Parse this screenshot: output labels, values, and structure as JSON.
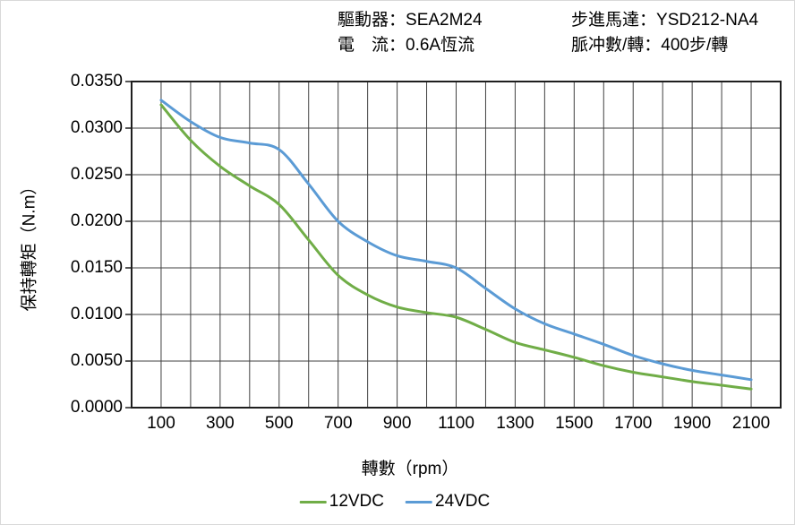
{
  "header": {
    "items": [
      {
        "label": "驅動器：",
        "value": "SEA2M24"
      },
      {
        "label": "步進馬達：",
        "value": "YSD212-NA4"
      },
      {
        "label": "電　流：",
        "value": "0.6A恆流"
      },
      {
        "label": "脈冲數/轉：",
        "value": "400步/轉"
      }
    ]
  },
  "chart_data": {
    "type": "line",
    "title": "",
    "xlabel": "轉數（rpm）",
    "ylabel": "保持轉矩（N.m）",
    "xlim": [
      0,
      2200
    ],
    "ylim": [
      0,
      0.035
    ],
    "grid": true,
    "legend_position": "bottom",
    "grid_color": "#404040",
    "axis_color": "#1f1f1f",
    "x_grid_step": 100,
    "x_tick_labels": [
      100,
      300,
      500,
      700,
      900,
      1100,
      1300,
      1500,
      1700,
      1900,
      2100
    ],
    "y_ticks": [
      {
        "value": 0.0,
        "label": "0.0000"
      },
      {
        "value": 0.005,
        "label": "0.0050"
      },
      {
        "value": 0.01,
        "label": "0.0100"
      },
      {
        "value": 0.015,
        "label": "0.0150"
      },
      {
        "value": 0.02,
        "label": "0.0200"
      },
      {
        "value": 0.025,
        "label": "0.0250"
      },
      {
        "value": 0.03,
        "label": "0.0300"
      },
      {
        "value": 0.035,
        "label": "0.0350"
      }
    ],
    "x": [
      100,
      200,
      300,
      400,
      500,
      600,
      700,
      800,
      900,
      1000,
      1100,
      1200,
      1300,
      1400,
      1500,
      1600,
      1700,
      1800,
      1900,
      2000,
      2100
    ],
    "series": [
      {
        "name": "12VDC",
        "color": "#70AD47",
        "values": [
          0.0325,
          0.0287,
          0.0259,
          0.0238,
          0.0218,
          0.018,
          0.0142,
          0.0121,
          0.0108,
          0.0102,
          0.0097,
          0.0084,
          0.007,
          0.0062,
          0.0054,
          0.0045,
          0.0038,
          0.0033,
          0.0028,
          0.0024,
          0.002
        ]
      },
      {
        "name": "24VDC",
        "color": "#5B9BD5",
        "values": [
          0.033,
          0.0307,
          0.029,
          0.0284,
          0.0277,
          0.024,
          0.02,
          0.0178,
          0.0163,
          0.0157,
          0.015,
          0.0128,
          0.0106,
          0.009,
          0.0079,
          0.0068,
          0.0056,
          0.0047,
          0.004,
          0.0035,
          0.003
        ]
      }
    ]
  }
}
